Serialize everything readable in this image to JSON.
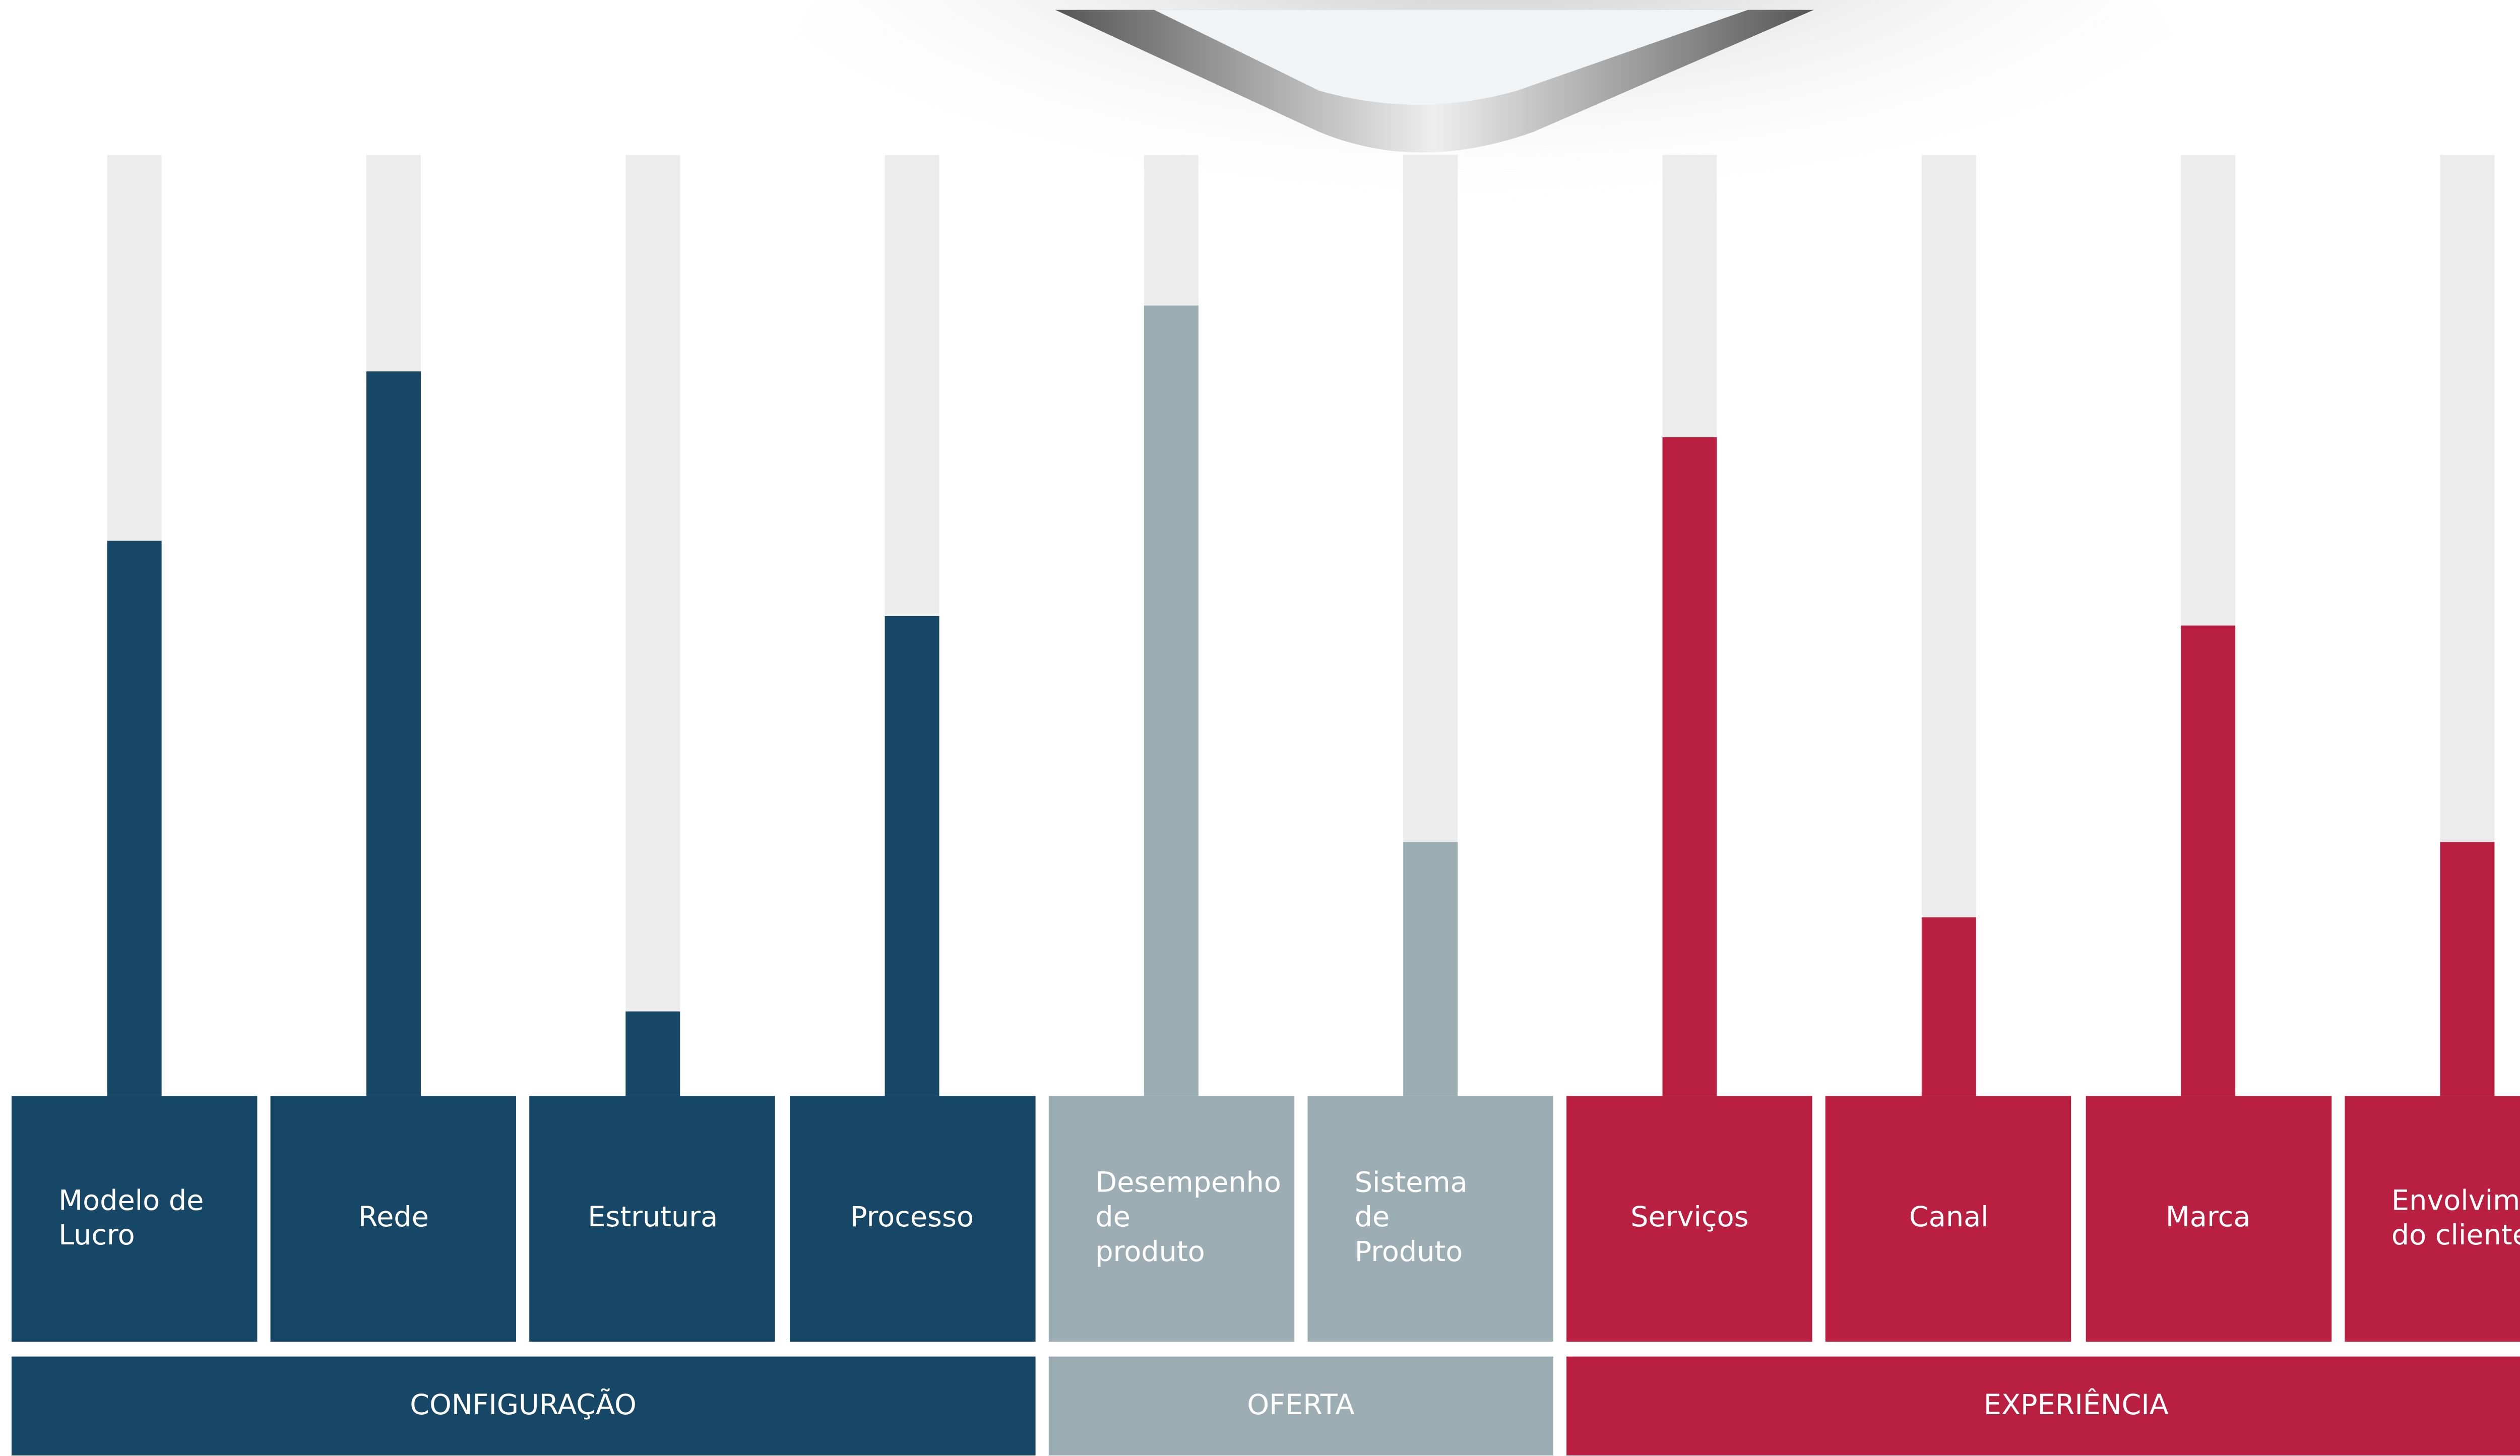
{
  "chart_data": {
    "type": "bar",
    "categories": [
      "Modelo de Lucro",
      "Rede",
      "Estrutura",
      "Processo",
      "Desempenho de produto",
      "Sistema de Produto",
      "Serviços",
      "Canal",
      "Marca",
      "Envolvimento do cliente"
    ],
    "series": [
      {
        "name": "CONFIGURAÇÃO",
        "color": "#174766",
        "values": [
          59,
          77,
          9,
          51,
          null,
          null,
          null,
          null,
          null,
          null
        ]
      },
      {
        "name": "OFERTA",
        "color": "#9caeb3",
        "values": [
          null,
          null,
          null,
          null,
          84,
          27,
          null,
          null,
          null,
          null
        ]
      },
      {
        "name": "EXPERIÊNCIA",
        "color": "#b81f40",
        "values": [
          null,
          null,
          null,
          null,
          null,
          null,
          70,
          19,
          50,
          27
        ]
      }
    ],
    "ylim": [
      0,
      100
    ],
    "track_color": "#ececec"
  }
}
